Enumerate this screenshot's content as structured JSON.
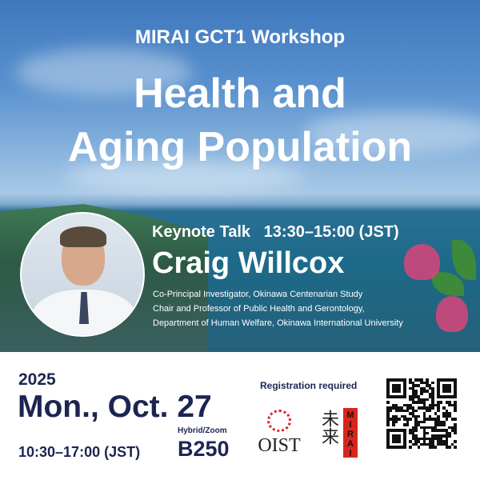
{
  "header": {
    "series": "MIRAI GCT1 Workshop",
    "title_line1": "Health and",
    "title_line2": "Aging Population"
  },
  "keynote": {
    "label": "Keynote Talk",
    "time": "13:30–15:00 (JST)",
    "speaker": "Craig Willcox",
    "affiliations": [
      "Co-Principal Investigator, Okinawa Centenarian Study",
      "Chair and Professor of Public Health and Gerontology,",
      "Department of Human Welfare, Okinawa International University"
    ]
  },
  "event": {
    "year": "2025",
    "date": "Mon., Oct. 27",
    "hours": "10:30–17:00 (JST)",
    "format": "Hybrid/Zoom",
    "room": "B250",
    "registration": "Registration required"
  },
  "logos": {
    "oist": "OIST",
    "mirai_kanji": "未来",
    "mirai": "MIRAI"
  },
  "colors": {
    "navy": "#1c2552",
    "mirai_red": "#d9261c",
    "oist_red": "#d8232a"
  },
  "icons": [
    "qr-code",
    "speaker-photo"
  ]
}
